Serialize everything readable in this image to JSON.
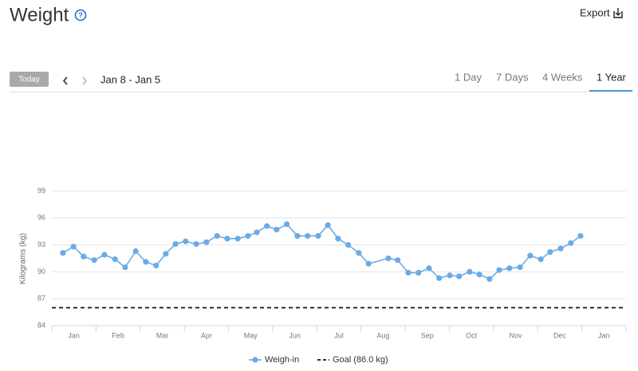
{
  "header": {
    "title": "Weight",
    "help": "?",
    "export": "Export"
  },
  "toolbar": {
    "today": "Today",
    "range": "Jan 8 - Jan 5",
    "tabs": [
      "1 Day",
      "7 Days",
      "4 Weeks",
      "1 Year"
    ],
    "selected_tab": 3
  },
  "chart_data": {
    "type": "line",
    "y_label": "Kilograms (kg)",
    "xlim": [
      0,
      13
    ],
    "xticks": [
      {
        "value": 0.5,
        "label": "Jan"
      },
      {
        "value": 1.5,
        "label": "Feb"
      },
      {
        "value": 2.5,
        "label": "Mar"
      },
      {
        "value": 3.5,
        "label": "Apr"
      },
      {
        "value": 4.5,
        "label": "May"
      },
      {
        "value": 5.5,
        "label": "Jun"
      },
      {
        "value": 6.5,
        "label": "Jul"
      },
      {
        "value": 7.5,
        "label": "Aug"
      },
      {
        "value": 8.5,
        "label": "Sep"
      },
      {
        "value": 9.5,
        "label": "Oct"
      },
      {
        "value": 10.5,
        "label": "Nov"
      },
      {
        "value": 11.5,
        "label": "Dec"
      },
      {
        "value": 12.5,
        "label": "Jan"
      }
    ],
    "ylim": [
      84,
      99
    ],
    "yticks": [
      84,
      87,
      90,
      93,
      96,
      99
    ],
    "grid": true,
    "x": [
      0.25,
      0.49,
      0.72,
      0.96,
      1.19,
      1.43,
      1.66,
      1.9,
      2.13,
      2.36,
      2.58,
      2.8,
      3.03,
      3.27,
      3.5,
      3.74,
      3.97,
      4.21,
      4.44,
      4.64,
      4.87,
      5.09,
      5.32,
      5.56,
      5.79,
      6.03,
      6.25,
      6.48,
      6.71,
      6.95,
      7.17,
      7.62,
      7.83,
      8.07,
      8.3,
      8.54,
      8.77,
      9.01,
      9.22,
      9.46,
      9.68,
      9.91,
      10.13,
      10.36,
      10.6,
      10.83,
      11.07,
      11.28,
      11.52,
      11.75,
      11.97
    ],
    "series": [
      {
        "name": "Weigh-in",
        "color": "#6aabe6",
        "values": [
          92.1,
          92.8,
          91.7,
          91.3,
          91.9,
          91.4,
          90.5,
          92.3,
          91.1,
          90.7,
          92.0,
          93.1,
          93.4,
          93.1,
          93.3,
          94.0,
          93.7,
          93.7,
          94.0,
          94.4,
          95.1,
          94.7,
          95.3,
          94.0,
          94.0,
          94.0,
          95.2,
          93.7,
          93.0,
          92.1,
          90.9,
          91.5,
          91.3,
          89.9,
          89.9,
          90.4,
          89.3,
          89.6,
          89.5,
          90.0,
          89.7,
          89.2,
          90.2,
          90.4,
          90.5,
          91.8,
          91.4,
          92.2,
          92.6,
          93.2,
          94.0
        ]
      }
    ],
    "goal": {
      "name": "Goal (86.0 kg)",
      "value": 86,
      "color": "#111111"
    }
  }
}
